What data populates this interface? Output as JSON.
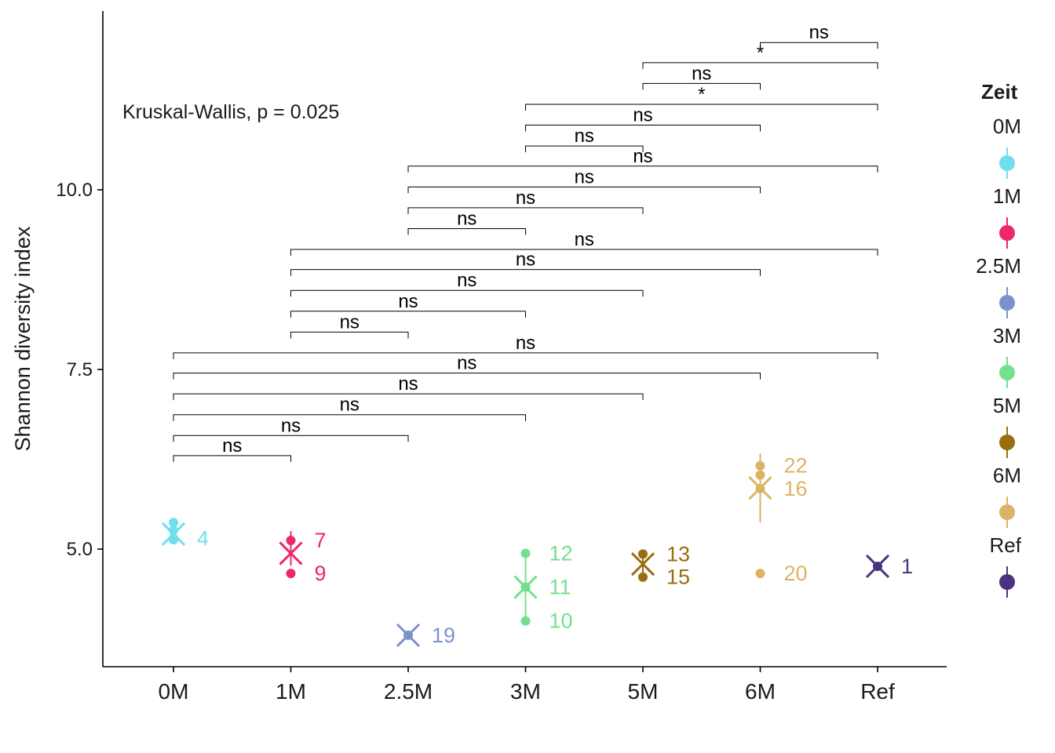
{
  "chart_data": {
    "type": "scatter",
    "ylabel": "Shannon diversity index",
    "xlabel": "",
    "categories": [
      "0M",
      "1M",
      "2.5M",
      "3M",
      "5M",
      "6M",
      "Ref"
    ],
    "y_ticks": [
      "5.0",
      "7.5",
      "10.0"
    ],
    "y_tick_values": [
      5.0,
      7.5,
      10.0
    ],
    "ylim": [
      3.6,
      12.9
    ],
    "annotation": "Kruskal-Wallis, p = 0.025",
    "grid": false,
    "legend_position": "right",
    "legend_title": "Zeit",
    "series": [
      {
        "name": "0M",
        "color": "#6fdfef",
        "points": [
          {
            "y": 5.37
          },
          {
            "y": 5.26
          },
          {
            "y": 5.15,
            "label": "4"
          },
          {
            "y": 5.13
          }
        ],
        "mean": 5.21,
        "lo": 5.13,
        "hi": 5.37
      },
      {
        "name": "1M",
        "color": "#f0266a",
        "points": [
          {
            "y": 5.12,
            "label": "7"
          },
          {
            "y": 4.66,
            "label": "9"
          }
        ],
        "mean": 4.94,
        "lo": 4.77,
        "hi": 5.25
      },
      {
        "name": "2.5M",
        "color": "#7a93cd",
        "points": [
          {
            "y": 3.8,
            "label": "19"
          }
        ],
        "mean": 3.8,
        "lo": 3.8,
        "hi": 3.8
      },
      {
        "name": "3M",
        "color": "#74e08e",
        "points": [
          {
            "y": 4.94,
            "label": "12"
          },
          {
            "y": 4.47,
            "label": "11"
          },
          {
            "y": 4.0,
            "label": "10"
          }
        ],
        "mean": 4.47,
        "lo": 4.0,
        "hi": 4.94
      },
      {
        "name": "5M",
        "color": "#9a6d10",
        "points": [
          {
            "y": 4.93,
            "label": "13"
          },
          {
            "y": 4.61,
            "label": "15"
          }
        ],
        "mean": 4.79,
        "lo": 4.61,
        "hi": 4.96
      },
      {
        "name": "6M",
        "color": "#dcb365",
        "points": [
          {
            "y": 6.16,
            "label": "22"
          },
          {
            "y": 6.03
          },
          {
            "y": 5.84,
            "label": "16"
          },
          {
            "y": 4.66,
            "label": "20"
          }
        ],
        "mean": 5.85,
        "lo": 5.37,
        "hi": 6.33
      },
      {
        "name": "Ref",
        "color": "#4a3480",
        "points": [
          {
            "y": 4.76,
            "label": "1"
          }
        ],
        "mean": 4.76,
        "lo": 4.76,
        "hi": 4.76
      }
    ],
    "comparisons": [
      {
        "g1": "0M",
        "g2": "1M",
        "y": 6.3,
        "label": "ns"
      },
      {
        "g1": "0M",
        "g2": "2.5M",
        "y": 6.58,
        "label": "ns"
      },
      {
        "g1": "0M",
        "g2": "3M",
        "y": 6.87,
        "label": "ns"
      },
      {
        "g1": "0M",
        "g2": "5M",
        "y": 7.16,
        "label": "ns"
      },
      {
        "g1": "0M",
        "g2": "6M",
        "y": 7.45,
        "label": "ns"
      },
      {
        "g1": "0M",
        "g2": "Ref",
        "y": 7.73,
        "label": "ns"
      },
      {
        "g1": "1M",
        "g2": "2.5M",
        "y": 8.02,
        "label": "ns"
      },
      {
        "g1": "1M",
        "g2": "3M",
        "y": 8.31,
        "label": "ns"
      },
      {
        "g1": "1M",
        "g2": "5M",
        "y": 8.6,
        "label": "ns"
      },
      {
        "g1": "1M",
        "g2": "6M",
        "y": 8.89,
        "label": "ns"
      },
      {
        "g1": "1M",
        "g2": "Ref",
        "y": 9.17,
        "label": "ns"
      },
      {
        "g1": "2.5M",
        "g2": "3M",
        "y": 9.46,
        "label": "ns"
      },
      {
        "g1": "2.5M",
        "g2": "5M",
        "y": 9.75,
        "label": "ns"
      },
      {
        "g1": "2.5M",
        "g2": "6M",
        "y": 10.04,
        "label": "ns"
      },
      {
        "g1": "2.5M",
        "g2": "Ref",
        "y": 10.33,
        "label": "ns"
      },
      {
        "g1": "3M",
        "g2": "5M",
        "y": 10.61,
        "label": "ns"
      },
      {
        "g1": "3M",
        "g2": "6M",
        "y": 10.9,
        "label": "ns"
      },
      {
        "g1": "3M",
        "g2": "Ref",
        "y": 11.19,
        "label": "*"
      },
      {
        "g1": "5M",
        "g2": "6M",
        "y": 11.48,
        "label": "ns"
      },
      {
        "g1": "5M",
        "g2": "Ref",
        "y": 11.77,
        "label": "*"
      },
      {
        "g1": "6M",
        "g2": "Ref",
        "y": 12.05,
        "label": "ns"
      }
    ]
  }
}
